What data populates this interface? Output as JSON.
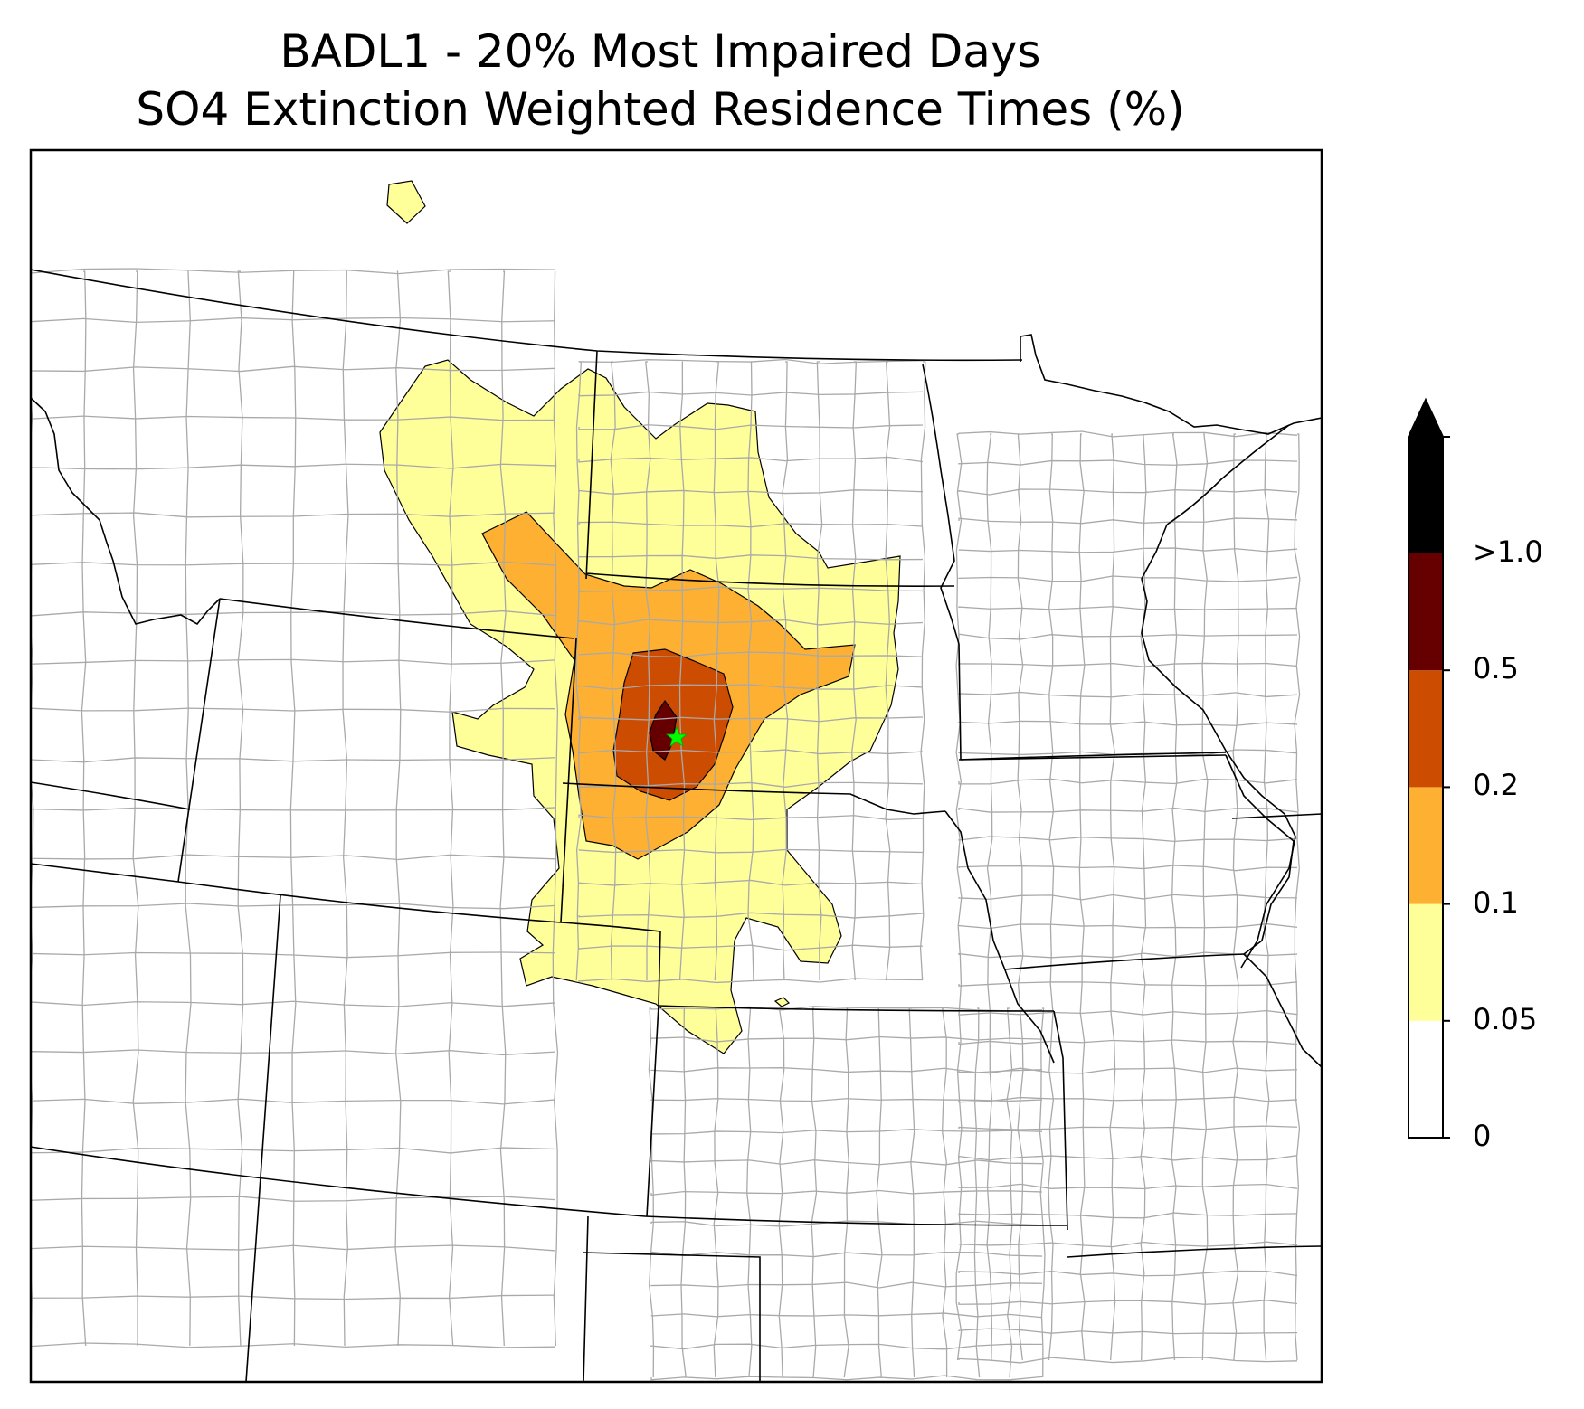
{
  "title_line1": "BADL1 - 20% Most Impaired Days",
  "title_line2": "SO4 Extinction Weighted Residence Times (%)",
  "colorbar": {
    "ticks": [
      "0",
      "0.05",
      "0.1",
      "0.2",
      "0.5",
      ">1.0"
    ],
    "colors": [
      "#ffffff",
      "#ffff99",
      "#fdb032",
      "#cc4c02",
      "#660000",
      "#000000"
    ],
    "extend": "max"
  },
  "receptor_marker": {
    "symbol": "star",
    "color": "#00ff00"
  },
  "map": {
    "state_line_color": "#000000",
    "county_line_color": "#aaaaaa",
    "contour_levels": [
      "0.05",
      "0.1",
      "0.2",
      "0.5",
      ">1.0"
    ]
  }
}
